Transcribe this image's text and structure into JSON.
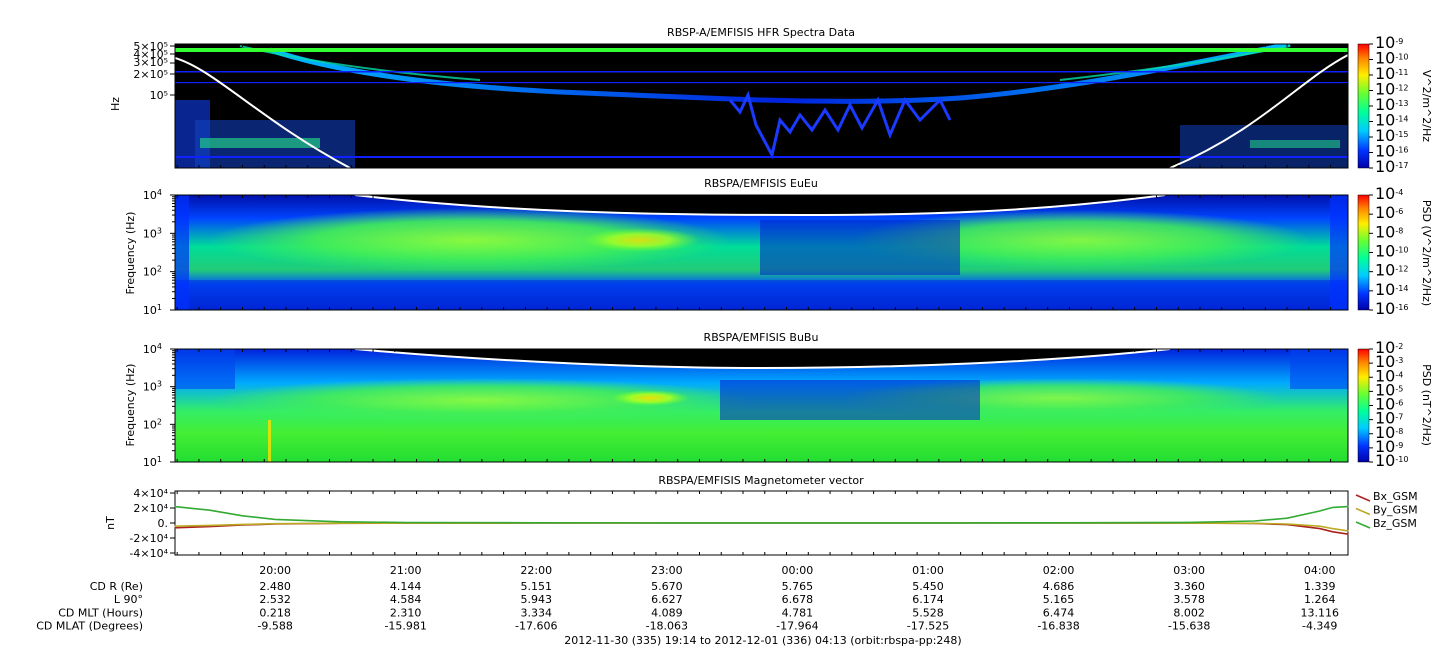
{
  "chart_data": [
    {
      "type": "heatmap",
      "title": "RBSP-A/EMFISIS  HFR Spectra Data",
      "ylabel": "Hz",
      "yscale": "log",
      "ylim": [
        10000,
        500000
      ],
      "y_tick_labels": [
        "5×10⁵",
        "4×10⁵",
        "3×10⁵",
        "2×10⁵",
        "10⁵"
      ],
      "y_tick_values": [
        500000,
        400000,
        300000,
        200000,
        100000
      ],
      "colorbar": {
        "label": "V^2/m^2/Hz",
        "range_exponents": [
          -17,
          -9
        ],
        "tick_exponents": [
          -9,
          -10,
          -11,
          -12,
          -13,
          -14,
          -15,
          -16,
          -17
        ],
        "colormap": [
          "#0000aa",
          "#0033ff",
          "#00ccff",
          "#00ff99",
          "#66ff33",
          "#ffee00",
          "#ff8800",
          "#ff0000"
        ]
      }
    },
    {
      "type": "heatmap",
      "title": "RBSPA/EMFISIS  EuEu",
      "ylabel": "Frequency (Hz)",
      "yscale": "log",
      "ylim": [
        10,
        10000
      ],
      "y_tick_exponents": [
        1,
        2,
        3,
        4
      ],
      "colorbar": {
        "label": "PSD (V^2/m^2/Hz)",
        "range_exponents": [
          -16,
          -4
        ],
        "tick_exponents": [
          -4,
          -6,
          -8,
          -10,
          -12,
          -14,
          -16
        ]
      }
    },
    {
      "type": "heatmap",
      "title": "RBSPA/EMFISIS  BuBu",
      "ylabel": "Frequency (Hz)",
      "yscale": "log",
      "ylim": [
        10,
        10000
      ],
      "y_tick_exponents": [
        1,
        2,
        3,
        4
      ],
      "colorbar": {
        "label": "PSD (nT^2/Hz)",
        "range_exponents": [
          -10,
          -2
        ],
        "tick_exponents": [
          -2,
          -3,
          -4,
          -5,
          -6,
          -7,
          -8,
          -9,
          -10
        ]
      }
    },
    {
      "type": "line",
      "title": "RBSPA/EMFISIS  Magnetometer vector",
      "ylabel": "nT",
      "ylim": [
        -40000,
        40000
      ],
      "y_tick_labels": [
        "4×10⁴",
        "2×10⁴",
        "0.",
        "-2×10⁴",
        "-4×10⁴"
      ],
      "y_tick_values": [
        40000,
        20000,
        0,
        -20000,
        -40000
      ],
      "x_hours": [
        19.23,
        19.5,
        19.75,
        20.0,
        20.5,
        21.0,
        22.0,
        23.0,
        0.0,
        1.0,
        2.0,
        3.0,
        3.5,
        3.75,
        4.0,
        4.1,
        4.22
      ],
      "series": [
        {
          "name": "Bx_GSM",
          "color": "#aa2222",
          "values": [
            -6000,
            -4500,
            -2500,
            -1200,
            -400,
            -150,
            -50,
            0,
            0,
            0,
            -50,
            -150,
            -600,
            -2000,
            -7000,
            -11000,
            -14000
          ]
        },
        {
          "name": "By_GSM",
          "color": "#bbaa22",
          "values": [
            -4000,
            -3000,
            -1800,
            -900,
            -300,
            -100,
            -30,
            0,
            0,
            0,
            -30,
            -100,
            -400,
            -1200,
            -4000,
            -7000,
            -10000
          ]
        },
        {
          "name": "Bz_GSM",
          "color": "#33aa33",
          "values": [
            20500,
            16000,
            9000,
            4500,
            1500,
            600,
            200,
            100,
            100,
            100,
            200,
            700,
            2500,
            6000,
            15000,
            19500,
            20500
          ]
        }
      ]
    }
  ],
  "time_axis": {
    "start_hour": 19.2333,
    "end_hour": 28.2167,
    "major_ticks": [
      "20:00",
      "21:00",
      "22:00",
      "23:00",
      "00:00",
      "01:00",
      "02:00",
      "03:00",
      "04:00"
    ]
  },
  "ephemeris": {
    "rows": [
      {
        "label": "CD R (Re)",
        "values": [
          "2.480",
          "4.144",
          "5.151",
          "5.670",
          "5.765",
          "5.450",
          "4.686",
          "3.360",
          "1.339"
        ]
      },
      {
        "label": "L 90°",
        "values": [
          "2.532",
          "4.584",
          "5.943",
          "6.627",
          "6.678",
          "6.174",
          "5.165",
          "3.578",
          "1.264"
        ]
      },
      {
        "label": "CD MLT (Hours)",
        "values": [
          "0.218",
          "2.310",
          "3.334",
          "4.089",
          "4.781",
          "5.528",
          "6.474",
          "8.002",
          "13.116"
        ]
      },
      {
        "label": "CD MLAT (Degrees)",
        "values": [
          "-9.588",
          "-15.981",
          "-17.606",
          "-18.063",
          "-17.964",
          "-17.525",
          "-16.838",
          "-15.638",
          "-4.349"
        ]
      }
    ]
  },
  "footer": {
    "range_text": "2012-11-30 (335) 19:14 to 2012-12-01 (336) 04:13 (orbit:rbspa-pp:248)"
  }
}
